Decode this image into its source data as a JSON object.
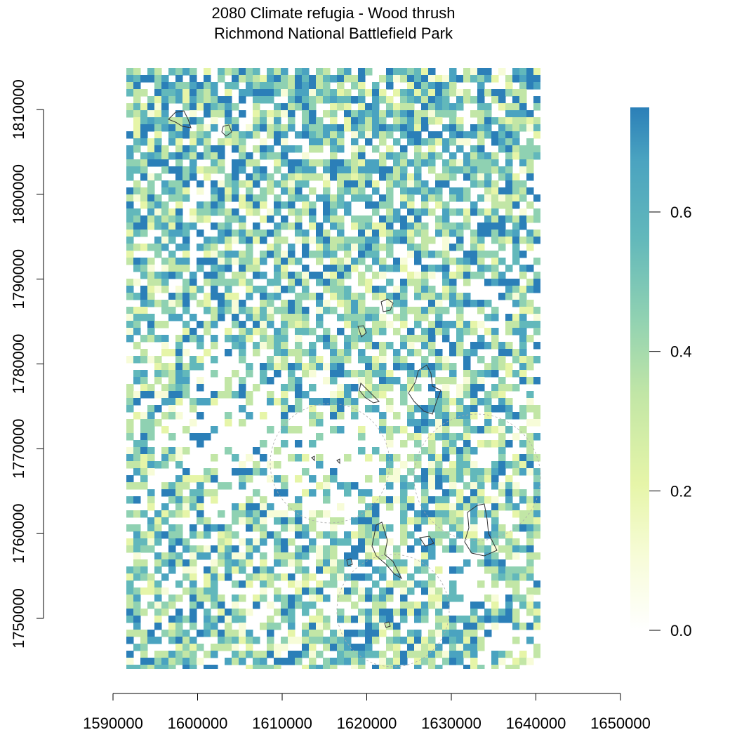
{
  "title": "2080 Climate refugia - Wood thrush",
  "subtitle": "Richmond National Battlefield Park",
  "map": {
    "x_ticks": [
      "1590000",
      "1600000",
      "1610000",
      "1620000",
      "1630000",
      "1640000",
      "1650000"
    ],
    "y_ticks": [
      "1750000",
      "1760000",
      "1770000",
      "1780000",
      "1790000",
      "1800000",
      "1810000"
    ],
    "x_range": [
      1590000,
      1650000
    ],
    "y_range": [
      1750000,
      1810000
    ],
    "extent": {
      "xmin": 1591500,
      "xmax": 1640500,
      "ymin": 1744000,
      "ymax": 1815000
    },
    "palette": [
      "#ffffff",
      "#f7fcd8",
      "#e6f5a8",
      "#c2e6a6",
      "#8fd1b2",
      "#62b8bb",
      "#4aa3c0",
      "#2b7fb8"
    ]
  },
  "legend": {
    "tick_labels": [
      "0.0",
      "0.2",
      "0.4",
      "0.6"
    ],
    "tick_values": [
      0.0,
      0.2,
      0.4,
      0.6
    ],
    "range": [
      0.0,
      0.75
    ]
  }
}
